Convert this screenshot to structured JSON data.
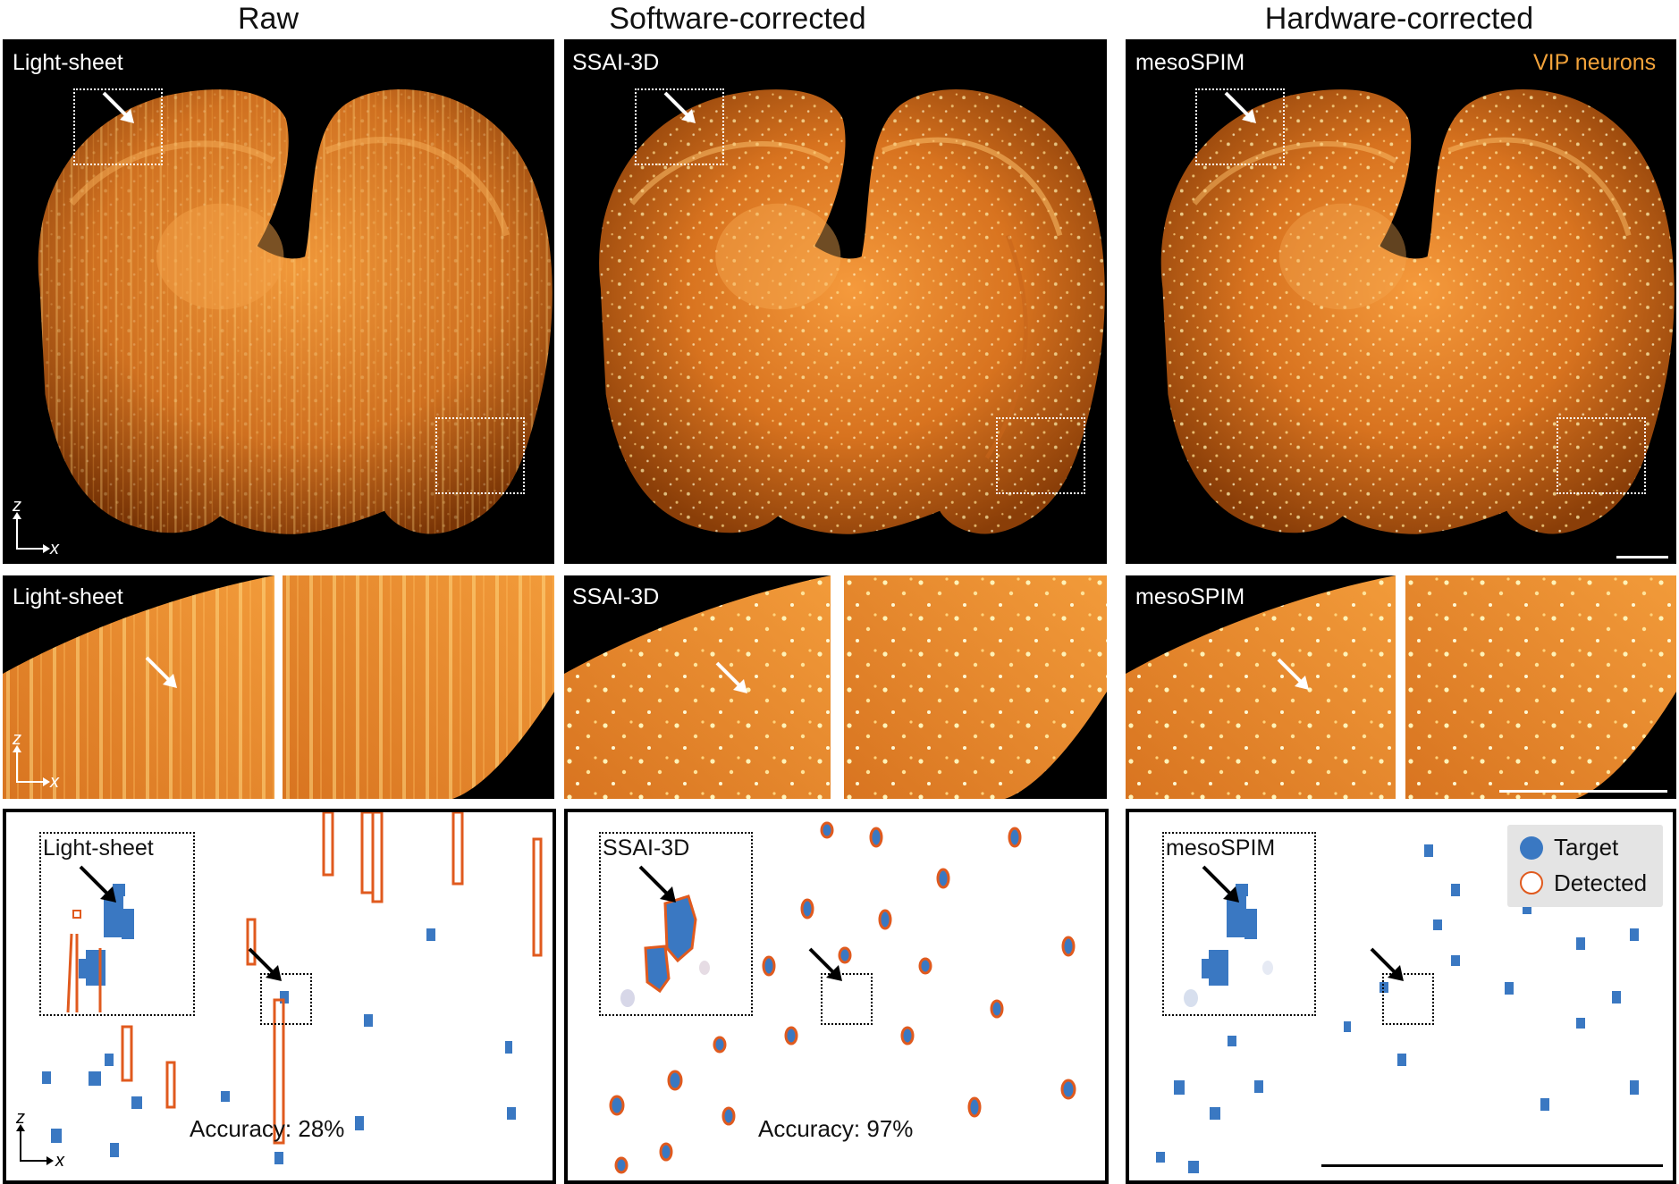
{
  "columns": [
    {
      "title": "Raw",
      "label": "Light-sheet"
    },
    {
      "title": "Software-corrected",
      "label": "SSAI-3D"
    },
    {
      "title": "Hardware-corrected",
      "label": "mesoSPIM"
    }
  ],
  "overview_annotation": "VIP neurons",
  "axis": {
    "vertical": "z",
    "horizontal": "x"
  },
  "accuracy": [
    {
      "method": "Light-sheet",
      "text": "Accuracy: 28%"
    },
    {
      "method": "SSAI-3D",
      "text": "Accuracy: 97%"
    }
  ],
  "legend": {
    "target": "Target",
    "detected": "Detected"
  },
  "colors": {
    "target": "#3a78c2",
    "detected": "#e05a1e",
    "fluorescence": "#f08a1c",
    "background": "#000000"
  }
}
